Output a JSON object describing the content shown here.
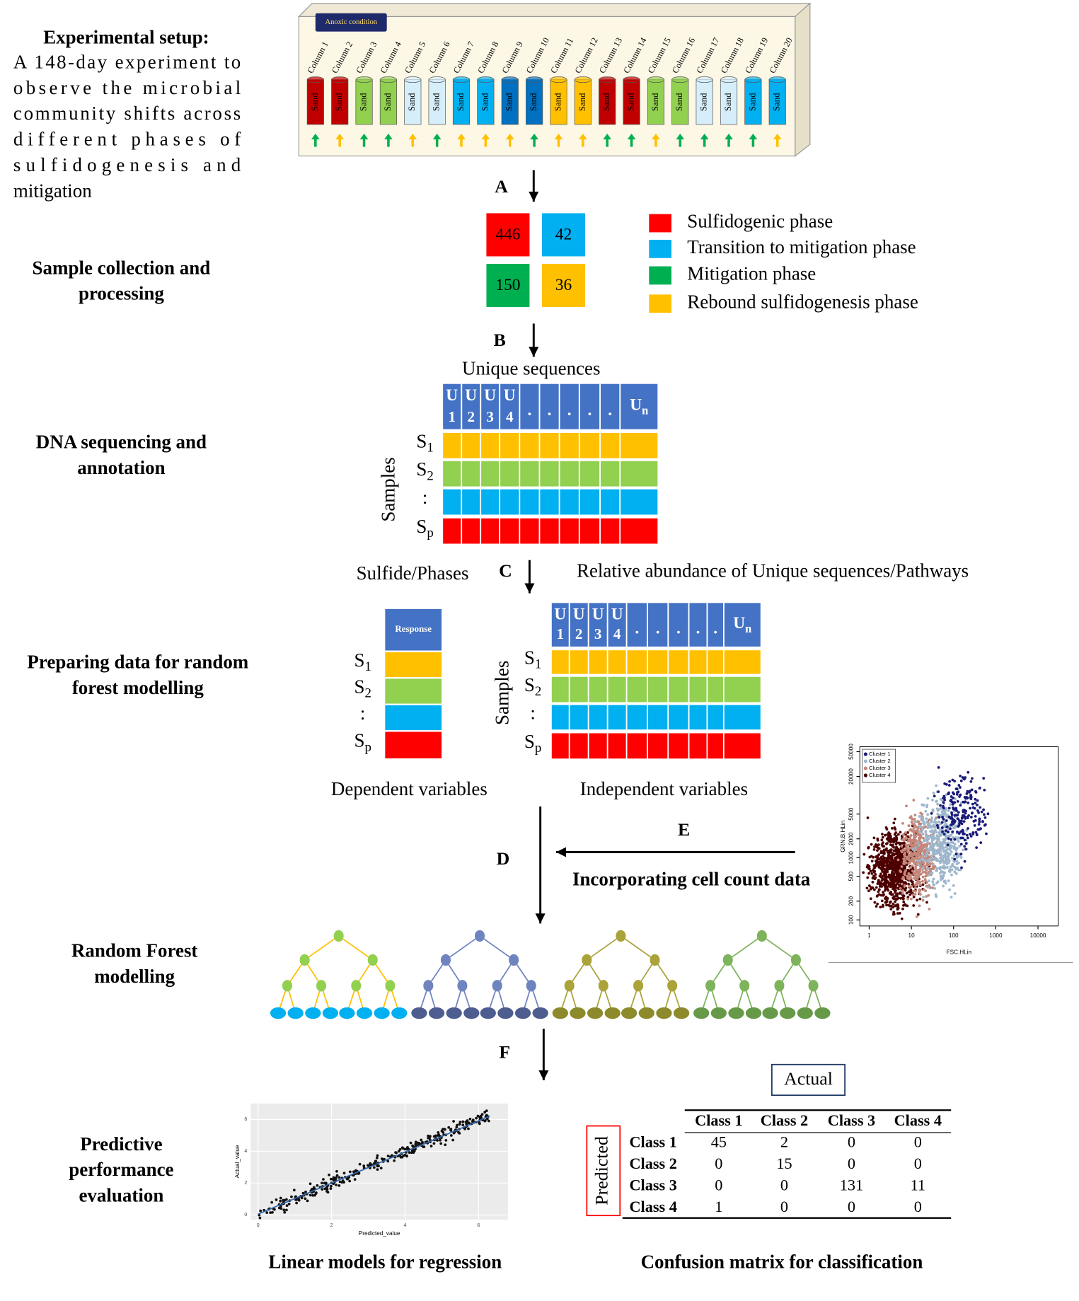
{
  "left_labels": {
    "setup": {
      "title": "Experimental setup:",
      "lines": [
        "A 148-day experiment to",
        "observe the microbial",
        "community shifts across",
        "different phases of",
        "sulfidogenesis and",
        "mitigation"
      ]
    },
    "sample": [
      "Sample collection and",
      "processing"
    ],
    "dna": [
      "DNA sequencing and",
      "annotation"
    ],
    "preparing": [
      "Preparing data for random",
      "forest modelling"
    ],
    "rf": [
      "Random Forest",
      "modelling"
    ],
    "predictive": [
      "Predictive",
      "performance",
      "evaluation"
    ]
  },
  "setup_box": {
    "label": "Anoxic condition",
    "column_text": "Sand",
    "columns": [
      {
        "name": "Column 1",
        "color": "#c00000",
        "arrow": "#00b050"
      },
      {
        "name": "Column 2",
        "color": "#c00000",
        "arrow": "#ffc000"
      },
      {
        "name": "Column 3",
        "color": "#92d050",
        "arrow": "#00b050"
      },
      {
        "name": "Column 4",
        "color": "#92d050",
        "arrow": "#00b050"
      },
      {
        "name": "Column 5",
        "color": "#d6eefa",
        "arrow": "#ffc000"
      },
      {
        "name": "Column 6",
        "color": "#d6eefa",
        "arrow": "#00b050"
      },
      {
        "name": "Column 7",
        "color": "#00b0f0",
        "arrow": "#ffc000"
      },
      {
        "name": "Column 8",
        "color": "#00b0f0",
        "arrow": "#ffc000"
      },
      {
        "name": "Column 9",
        "color": "#0070c0",
        "arrow": "#ffc000"
      },
      {
        "name": "Column 10",
        "color": "#0070c0",
        "arrow": "#00b050"
      },
      {
        "name": "Column 11",
        "color": "#ffc000",
        "arrow": "#ffc000"
      },
      {
        "name": "Column 12",
        "color": "#ffc000",
        "arrow": "#ffc000"
      },
      {
        "name": "Column 13",
        "color": "#c00000",
        "arrow": "#00b050"
      },
      {
        "name": "Column 14",
        "color": "#c00000",
        "arrow": "#00b050"
      },
      {
        "name": "Column 15",
        "color": "#92d050",
        "arrow": "#ffc000"
      },
      {
        "name": "Column 16",
        "color": "#92d050",
        "arrow": "#00b050"
      },
      {
        "name": "Column 17",
        "color": "#d6eefa",
        "arrow": "#00b050"
      },
      {
        "name": "Column 18",
        "color": "#d6eefa",
        "arrow": "#00b050"
      },
      {
        "name": "Column 19",
        "color": "#00b0f0",
        "arrow": "#00b050"
      },
      {
        "name": "Column 20",
        "color": "#00b0f0",
        "arrow": "#ffc000"
      }
    ]
  },
  "step_labels": [
    "A",
    "B",
    "C",
    "D",
    "E",
    "F"
  ],
  "phase_counts": [
    {
      "value": 446,
      "color": "#ff0000"
    },
    {
      "value": 42,
      "color": "#00b0f0"
    },
    {
      "value": 150,
      "color": "#00b050"
    },
    {
      "value": 36,
      "color": "#ffc000"
    }
  ],
  "phase_legend": [
    {
      "label": "Sulfidogenic phase",
      "color": "#ff0000"
    },
    {
      "label": "Transition to mitigation phase",
      "color": "#00b0f0"
    },
    {
      "label": "Mitigation phase",
      "color": "#00b050"
    },
    {
      "label": "Rebound sulfidogenesis phase",
      "color": "#ffc000"
    }
  ],
  "sequence_matrix": {
    "title": "Unique sequences",
    "axis_label": "Samples",
    "header_color": "#4472c4",
    "header": [
      {
        "text": "U",
        "sub": "1"
      },
      {
        "text": "U",
        "sub": "2"
      },
      {
        "text": "U",
        "sub": "3"
      },
      {
        "text": "U",
        "sub": "4"
      },
      {
        "text": "."
      },
      {
        "text": "."
      },
      {
        "text": "."
      },
      {
        "text": "."
      },
      {
        "text": "."
      },
      {
        "text": "U",
        "sub": "n"
      }
    ],
    "rows": [
      {
        "text": "S",
        "sub": "1"
      },
      {
        "text": "S",
        "sub": "2"
      },
      {
        "text": ":"
      },
      {
        "text": "S",
        "sub": "p"
      }
    ],
    "row_colors": [
      "#ffc000",
      "#92d050",
      "#00b0f0",
      "#ff0000"
    ]
  },
  "captions": {
    "left": "Sulfide/Phases",
    "right": "Relative abundance of Unique sequences/Pathways",
    "dependent": "Dependent variables",
    "independent": "Independent variables",
    "cell_count": "Incorporating cell count data",
    "regression": "Linear models for regression",
    "confusion": "Confusion matrix for classification"
  },
  "response_column": {
    "header": "Response",
    "rows": [
      {
        "text": "S",
        "sub": "1"
      },
      {
        "text": "S",
        "sub": "2"
      },
      {
        "text": ":"
      },
      {
        "text": "S",
        "sub": "p"
      }
    ]
  },
  "feature_matrix": {
    "axis_label": "Samples",
    "header": [
      {
        "text": "U",
        "sub": "1"
      },
      {
        "text": "U",
        "sub": "2"
      },
      {
        "text": "U",
        "sub": "3"
      },
      {
        "text": "U",
        "sub": "4"
      },
      {
        "text": "."
      },
      {
        "text": "."
      },
      {
        "text": "."
      },
      {
        "text": "."
      },
      {
        "text": "."
      },
      {
        "text": "U",
        "sub": "n"
      }
    ],
    "rows": [
      {
        "text": "S",
        "sub": "1"
      },
      {
        "text": "S",
        "sub": "2"
      },
      {
        "text": ":"
      },
      {
        "text": "S",
        "sub": "p"
      }
    ]
  },
  "cell_plot": {
    "legend": [
      "Cluster 1",
      "Cluster 2",
      "Cluster 3",
      "Cluster 4"
    ],
    "colors": [
      "#1a1a78",
      "#9db6cc",
      "#c4877a",
      "#4d0000"
    ],
    "xlabel": "FSC.HLin",
    "ylabel": "GRN.B.HLin",
    "log": true,
    "xlim": [
      0.6,
      30000
    ],
    "ylim": [
      80,
      60000
    ],
    "xticks": [
      1,
      10,
      100,
      1000,
      10000
    ],
    "yticks": [
      100,
      200,
      500,
      1000,
      2000,
      5000,
      20000,
      50000
    ]
  },
  "regression_plot": {
    "xlabel": "Predicted_value",
    "ylabel": "Actual_value",
    "xlim": [
      -0.2,
      6.8
    ],
    "ylim": [
      -0.3,
      7
    ],
    "xticks": [
      0,
      2,
      4,
      6
    ],
    "yticks": [
      0,
      2,
      4,
      6
    ]
  },
  "confusion_matrix": {
    "actual": "Actual",
    "predicted": "Predicted",
    "classes": [
      "Class 1",
      "Class 2",
      "Class 3",
      "Class 4"
    ],
    "rows": [
      [
        45,
        2,
        0,
        0
      ],
      [
        0,
        15,
        0,
        0
      ],
      [
        0,
        0,
        131,
        11
      ],
      [
        1,
        0,
        0,
        0
      ]
    ]
  },
  "trees": [
    {
      "node": "#92d050",
      "edge": "#ffc000",
      "leaf": "#00b0f0"
    },
    {
      "node": "#6f84bf",
      "edge": "#6f84bf",
      "leaf": "#4e5d8f"
    },
    {
      "node": "#aaa33a",
      "edge": "#aaa33a",
      "leaf": "#8c8a2a"
    },
    {
      "node": "#7db35a",
      "edge": "#7db35a",
      "leaf": "#679a48"
    }
  ]
}
